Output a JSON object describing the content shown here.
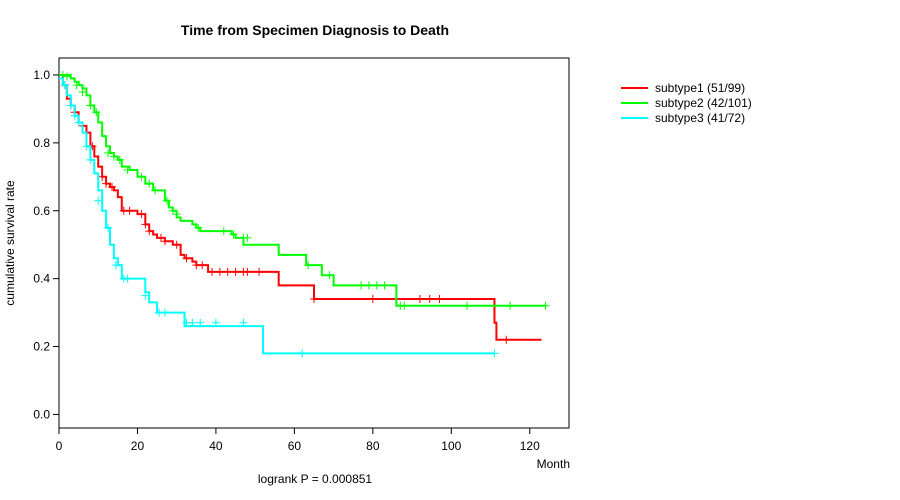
{
  "chart_data": {
    "type": "line",
    "subtype": "kaplan-meier",
    "title": "Time from Specimen Diagnosis to Death",
    "xlabel": "Month",
    "ylabel": "cumulative survival rate",
    "xlim": [
      0,
      130
    ],
    "ylim": [
      -0.04,
      1.05
    ],
    "xticks": [
      0,
      20,
      40,
      60,
      80,
      100,
      120
    ],
    "yticks": [
      0.0,
      0.2,
      0.4,
      0.6,
      0.8,
      1.0
    ],
    "ytick_labels": [
      "0.0",
      "0.2",
      "0.4",
      "0.6",
      "0.8",
      "1.0"
    ],
    "legend_position": "top-right, outside plot",
    "annotation": "logrank P = 0.000851",
    "series": [
      {
        "name": "subtype1 (51/99)",
        "color": "#ff0000",
        "steps": [
          [
            0,
            1.0
          ],
          [
            1,
            0.97
          ],
          [
            2,
            0.93
          ],
          [
            3,
            0.91
          ],
          [
            4,
            0.89
          ],
          [
            5,
            0.86
          ],
          [
            6,
            0.85
          ],
          [
            7,
            0.83
          ],
          [
            8,
            0.79
          ],
          [
            9,
            0.76
          ],
          [
            10,
            0.73
          ],
          [
            11,
            0.7
          ],
          [
            12,
            0.68
          ],
          [
            13,
            0.67
          ],
          [
            14,
            0.66
          ],
          [
            15,
            0.64
          ],
          [
            16,
            0.6
          ],
          [
            20,
            0.59
          ],
          [
            22,
            0.56
          ],
          [
            23,
            0.54
          ],
          [
            24,
            0.53
          ],
          [
            25,
            0.52
          ],
          [
            27,
            0.51
          ],
          [
            29,
            0.5
          ],
          [
            31,
            0.47
          ],
          [
            32,
            0.46
          ],
          [
            34,
            0.45
          ],
          [
            35,
            0.44
          ],
          [
            38,
            0.42
          ],
          [
            56,
            0.38
          ],
          [
            65,
            0.34
          ],
          [
            111,
            0.27
          ],
          [
            111.5,
            0.22
          ],
          [
            123,
            0.22
          ]
        ],
        "censors": [
          [
            1.5,
            0.97
          ],
          [
            3,
            0.91
          ],
          [
            4,
            0.89
          ],
          [
            6,
            0.85
          ],
          [
            7,
            0.83
          ],
          [
            8.5,
            0.79
          ],
          [
            11,
            0.7
          ],
          [
            12,
            0.68
          ],
          [
            13.5,
            0.67
          ],
          [
            16.5,
            0.6
          ],
          [
            18,
            0.6
          ],
          [
            21,
            0.59
          ],
          [
            22,
            0.56
          ],
          [
            23,
            0.54
          ],
          [
            26,
            0.52
          ],
          [
            27,
            0.51
          ],
          [
            30,
            0.5
          ],
          [
            32.5,
            0.46
          ],
          [
            35,
            0.44
          ],
          [
            36.5,
            0.44
          ],
          [
            39,
            0.42
          ],
          [
            41,
            0.42
          ],
          [
            43,
            0.42
          ],
          [
            45,
            0.42
          ],
          [
            47,
            0.42
          ],
          [
            48,
            0.42
          ],
          [
            51,
            0.42
          ],
          [
            65,
            0.34
          ],
          [
            80,
            0.34
          ],
          [
            92,
            0.34
          ],
          [
            94.5,
            0.34
          ],
          [
            97,
            0.34
          ],
          [
            114,
            0.22
          ]
        ]
      },
      {
        "name": "subtype2 (42/101)",
        "color": "#00ff00",
        "steps": [
          [
            0,
            1.0
          ],
          [
            3,
            0.99
          ],
          [
            4,
            0.98
          ],
          [
            5,
            0.97
          ],
          [
            6,
            0.96
          ],
          [
            7,
            0.94
          ],
          [
            8,
            0.91
          ],
          [
            9,
            0.89
          ],
          [
            10,
            0.86
          ],
          [
            11,
            0.82
          ],
          [
            12,
            0.79
          ],
          [
            13,
            0.77
          ],
          [
            14,
            0.76
          ],
          [
            15,
            0.75
          ],
          [
            16,
            0.73
          ],
          [
            18,
            0.72
          ],
          [
            20,
            0.7
          ],
          [
            22,
            0.68
          ],
          [
            24,
            0.66
          ],
          [
            27,
            0.63
          ],
          [
            28,
            0.61
          ],
          [
            29,
            0.6
          ],
          [
            30,
            0.58
          ],
          [
            31,
            0.57
          ],
          [
            34,
            0.56
          ],
          [
            35,
            0.55
          ],
          [
            36,
            0.54
          ],
          [
            44,
            0.53
          ],
          [
            45,
            0.52
          ],
          [
            47,
            0.5
          ],
          [
            56,
            0.47
          ],
          [
            63,
            0.44
          ],
          [
            67,
            0.41
          ],
          [
            70,
            0.38
          ],
          [
            86,
            0.32
          ],
          [
            124,
            0.32
          ]
        ],
        "censors": [
          [
            1,
            1.0
          ],
          [
            2,
            0.995
          ],
          [
            4.5,
            0.97
          ],
          [
            6,
            0.95
          ],
          [
            8,
            0.91
          ],
          [
            9.5,
            0.89
          ],
          [
            12.5,
            0.77
          ],
          [
            14,
            0.76
          ],
          [
            15.5,
            0.75
          ],
          [
            17.5,
            0.72
          ],
          [
            21,
            0.7
          ],
          [
            23,
            0.68
          ],
          [
            24.5,
            0.66
          ],
          [
            27.5,
            0.63
          ],
          [
            29,
            0.6
          ],
          [
            30,
            0.59
          ],
          [
            35.5,
            0.55
          ],
          [
            42,
            0.54
          ],
          [
            44.5,
            0.53
          ],
          [
            47,
            0.52
          ],
          [
            48,
            0.52
          ],
          [
            63.5,
            0.44
          ],
          [
            69,
            0.41
          ],
          [
            77,
            0.38
          ],
          [
            79,
            0.38
          ],
          [
            81,
            0.38
          ],
          [
            83,
            0.38
          ],
          [
            87,
            0.32
          ],
          [
            88,
            0.32
          ],
          [
            104,
            0.32
          ],
          [
            115,
            0.32
          ],
          [
            124,
            0.32
          ]
        ]
      },
      {
        "name": "subtype3 (41/72)",
        "color": "#00ffff",
        "steps": [
          [
            0,
            0.99
          ],
          [
            1,
            0.97
          ],
          [
            2,
            0.94
          ],
          [
            3,
            0.91
          ],
          [
            4,
            0.88
          ],
          [
            5,
            0.86
          ],
          [
            6,
            0.83
          ],
          [
            7,
            0.79
          ],
          [
            8,
            0.75
          ],
          [
            9,
            0.71
          ],
          [
            10,
            0.66
          ],
          [
            11,
            0.6
          ],
          [
            12,
            0.55
          ],
          [
            13,
            0.5
          ],
          [
            14,
            0.46
          ],
          [
            15,
            0.44
          ],
          [
            16,
            0.4
          ],
          [
            17,
            0.4
          ],
          [
            22,
            0.36
          ],
          [
            23,
            0.33
          ],
          [
            25,
            0.3
          ],
          [
            32,
            0.26
          ],
          [
            52,
            0.18
          ],
          [
            111,
            0.18
          ]
        ],
        "censors": [
          [
            1.5,
            0.97
          ],
          [
            3,
            0.91
          ],
          [
            4,
            0.88
          ],
          [
            5,
            0.86
          ],
          [
            7,
            0.79
          ],
          [
            8,
            0.75
          ],
          [
            10,
            0.63
          ],
          [
            12.5,
            0.55
          ],
          [
            14.5,
            0.44
          ],
          [
            16.5,
            0.4
          ],
          [
            17.5,
            0.4
          ],
          [
            22,
            0.35
          ],
          [
            25.5,
            0.3
          ],
          [
            27,
            0.3
          ],
          [
            32.5,
            0.27
          ],
          [
            34,
            0.27
          ],
          [
            36,
            0.27
          ],
          [
            40,
            0.27
          ],
          [
            47,
            0.27
          ],
          [
            62,
            0.18
          ],
          [
            111,
            0.18
          ]
        ]
      }
    ]
  }
}
